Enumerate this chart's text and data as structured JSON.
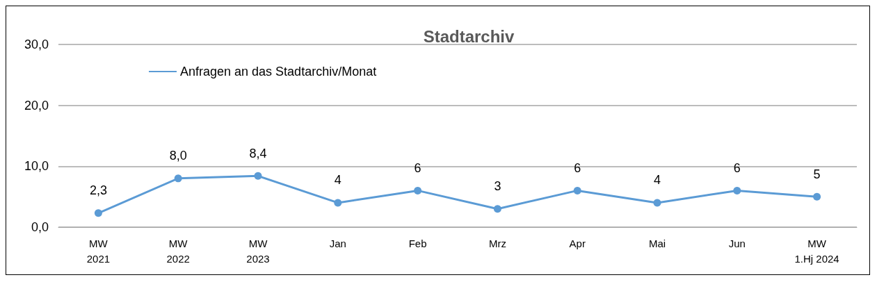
{
  "chart_data": {
    "type": "line",
    "title": "Stadtarchiv",
    "categories": [
      "MW\n2021",
      "MW\n2022",
      "MW\n2023",
      "Jan",
      "Feb",
      "Mrz",
      "Apr",
      "Mai",
      "Jun",
      "MW\n1.Hj 2024"
    ],
    "series": [
      {
        "name": "Anfragen an das Stadtarchiv/Monat",
        "color": "#5b9bd5",
        "values": [
          2.3,
          8.0,
          8.4,
          4,
          6,
          3,
          6,
          4,
          6,
          5
        ],
        "value_labels": [
          "2,3",
          "8,0",
          "8,4",
          "4",
          "6",
          "3",
          "6",
          "4",
          "6",
          "5"
        ]
      }
    ],
    "ylim": [
      0,
      30
    ],
    "yticks": [
      {
        "value": 0,
        "label": "0,0"
      },
      {
        "value": 10,
        "label": "10,0"
      },
      {
        "value": 20,
        "label": "20,0"
      },
      {
        "value": 30,
        "label": "30,0"
      }
    ],
    "grid": "y",
    "legend": "top left",
    "marker": "circle",
    "line_style": "solid"
  }
}
